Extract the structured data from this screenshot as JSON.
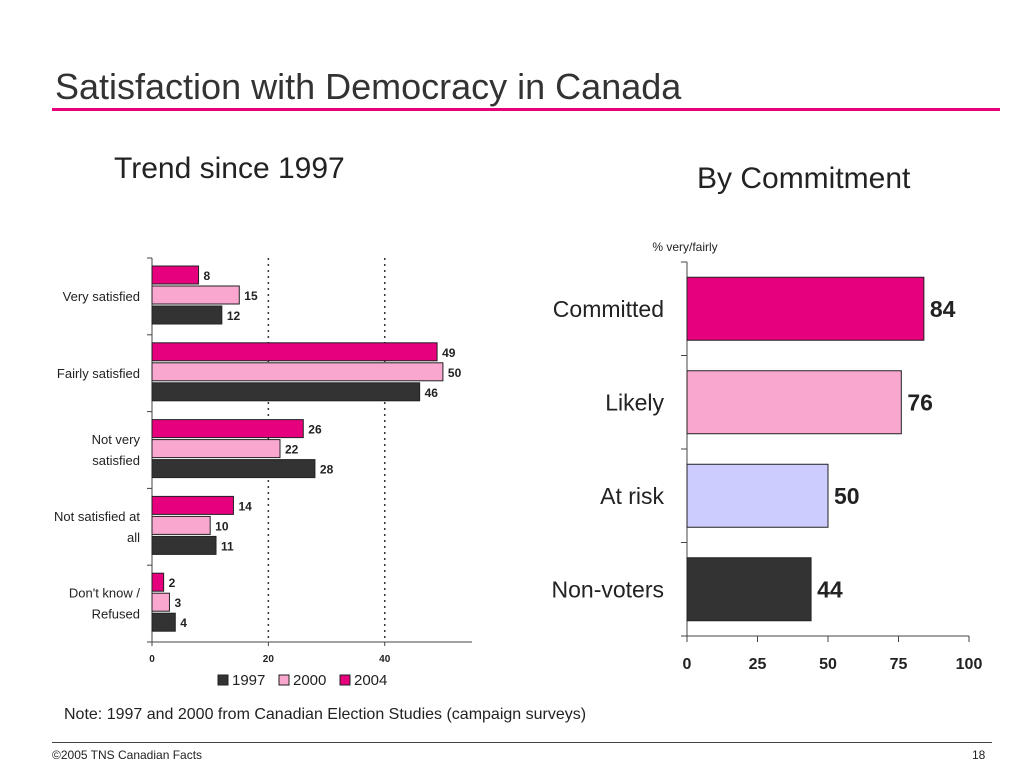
{
  "slide": {
    "title": "Satisfaction with Democracy in Canada",
    "note": "Note: 1997 and 2000 from Canadian Election Studies (campaign surveys)",
    "copyright": "©2005 TNS Canadian Facts",
    "page_number": "18",
    "accent_color": "#e6007e"
  },
  "chart_data": [
    {
      "type": "bar",
      "orientation": "horizontal",
      "title": "Trend since 1997",
      "categories": [
        [
          "Very satisfied"
        ],
        [
          "Fairly satisfied"
        ],
        [
          "Not very",
          "satisfied"
        ],
        [
          "Not satisfied at",
          "all"
        ],
        [
          "Don't know /",
          "Refused"
        ]
      ],
      "series": [
        {
          "name": "2004",
          "color": "#e6007e",
          "values": [
            8,
            49,
            26,
            14,
            2
          ]
        },
        {
          "name": "2000",
          "color": "#f9a7cf",
          "values": [
            15,
            50,
            22,
            10,
            3
          ]
        },
        {
          "name": "1997",
          "color": "#333333",
          "values": [
            12,
            46,
            28,
            11,
            4
          ]
        }
      ],
      "legend_order": [
        "1997",
        "2000",
        "2004"
      ],
      "legend_position": "bottom",
      "xlim": [
        0,
        55
      ],
      "xticks": [
        0,
        20,
        40
      ],
      "gridlines": "dotted vertical at 20 and 40"
    },
    {
      "type": "bar",
      "orientation": "horizontal",
      "title": "By Commitment",
      "axis_note": "% very/fairly",
      "categories": [
        "Committed",
        "Likely",
        "At risk",
        "Non-voters"
      ],
      "values": [
        84,
        76,
        50,
        44
      ],
      "colors": [
        "#e6007e",
        "#f9a7cf",
        "#ccccff",
        "#333333"
      ],
      "xlim": [
        0,
        100
      ],
      "xticks": [
        0,
        25,
        50,
        75,
        100
      ]
    }
  ]
}
